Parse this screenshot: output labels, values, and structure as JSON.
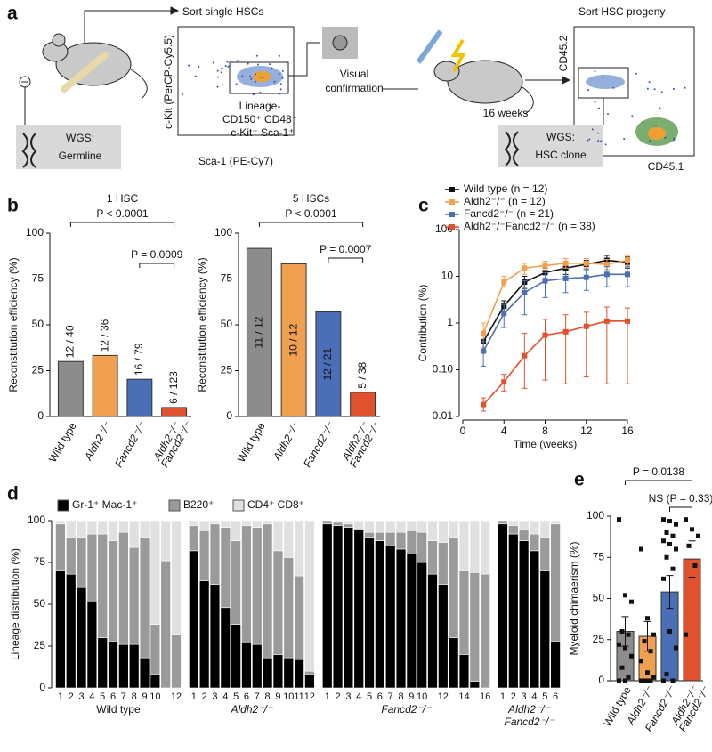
{
  "figure": {
    "panel_labels": [
      "a",
      "b",
      "c",
      "d",
      "e"
    ]
  },
  "diagram": {
    "sort_label": "Sort single HSCs",
    "flow1_ylabel": "c-Kit (PerCP-Cy5.5)",
    "flow1_xlabel": "Sca-1 (PE-Cy7)",
    "gate_text": [
      "Lineage-",
      "CD150⁺ CD48⁻",
      "c-Kit⁺ Sca-1⁺"
    ],
    "visual": [
      "Visual",
      "confirmation"
    ],
    "weeks": "16 weeks",
    "progeny_label": "Sort HSC progeny",
    "flow2_ylabel": "CD45.2",
    "flow2_xlabel": "CD45.1",
    "wgs1": [
      "WGS:",
      "Germline"
    ],
    "wgs2": [
      "WGS:",
      "HSC clone"
    ]
  },
  "chart_data": [
    {
      "type": "bar",
      "title": "1 HSC",
      "ylabel": "Reconstitution efficiency (%)",
      "categories": [
        "Wild type",
        "Aldh2⁻/⁻",
        "Fancd2⁻/⁻",
        [
          "Aldh2⁻/⁻",
          "Fancd2⁻/⁻"
        ]
      ],
      "values": [
        30,
        33.3,
        20.3,
        4.9
      ],
      "value_labels": [
        "12 / 40",
        "12 / 36",
        "16 / 79",
        "6 / 123"
      ],
      "colors": [
        "#8c8c8c",
        "#f0a050",
        "#4a6fb5",
        "#e0522e"
      ],
      "ylim": [
        0,
        100
      ],
      "yticks": [
        0,
        25,
        50,
        75,
        100
      ],
      "annotations": [
        "P < 0.0001",
        "P = 0.0009"
      ]
    },
    {
      "type": "bar",
      "title": "5 HSCs",
      "ylabel": "Reconstitution efficiency (%)",
      "categories": [
        "Wild type",
        "Aldh2⁻/⁻",
        "Fancd2⁻/⁻",
        [
          "Aldh2⁻/⁻",
          "Fancd2⁻/⁻"
        ]
      ],
      "values": [
        91.7,
        83.3,
        57.1,
        13.2
      ],
      "value_labels": [
        "11 / 12",
        "10 / 12",
        "12 / 21",
        "5 / 38"
      ],
      "colors": [
        "#8c8c8c",
        "#f0a050",
        "#4a6fb5",
        "#e0522e"
      ],
      "ylim": [
        0,
        100
      ],
      "yticks": [
        0,
        25,
        50,
        75,
        100
      ],
      "annotations": [
        "P < 0.0001",
        "P = 0.0007"
      ]
    },
    {
      "type": "line",
      "ylabel": "Contribution (%)",
      "xlabel": "Time (weeks)",
      "log": true,
      "x": [
        2,
        4,
        6,
        8,
        10,
        12,
        14,
        16
      ],
      "xlim": [
        0,
        16
      ],
      "xticks": [
        0,
        4,
        8,
        12,
        16
      ],
      "ylim": [
        0.01,
        100
      ],
      "yticks": [
        0.01,
        {
          "value": 0.1,
          "label": "0.10"
        },
        1,
        10,
        100
      ],
      "series": [
        {
          "name": "Wild type (n = 12)",
          "color": "#111111",
          "values": [
            0.4,
            2.3,
            7.5,
            12,
            15,
            18,
            22,
            20
          ],
          "lower": [
            0.25,
            1.8,
            5.5,
            9,
            11,
            14,
            17,
            15
          ],
          "upper": [
            0.6,
            3,
            10,
            15,
            19,
            22,
            28,
            26
          ]
        },
        {
          "name": "Aldh2⁻/⁻ (n = 12)",
          "color": "#f0a050",
          "values": [
            0.6,
            7.5,
            15,
            17,
            19,
            19,
            18,
            22
          ],
          "lower": [
            0.3,
            6,
            11,
            13,
            15,
            15,
            14,
            17
          ],
          "upper": [
            1,
            10,
            19,
            21,
            24,
            24,
            23,
            27
          ]
        },
        {
          "name": "Fancd2⁻/⁻ (n = 21)",
          "color": "#4a6fb5",
          "values": [
            0.25,
            1.6,
            4.5,
            8,
            9,
            9.5,
            11,
            11
          ],
          "lower": [
            0.12,
            0.8,
            1.5,
            3.5,
            4.5,
            5,
            6,
            6
          ],
          "upper": [
            0.4,
            2.5,
            8,
            12,
            13,
            14,
            16,
            16
          ]
        },
        {
          "name": "Aldh2⁻/⁻Fancd2⁻/⁻ (n = 38)",
          "color": "#e0522e",
          "values": [
            0.018,
            0.055,
            0.2,
            0.55,
            0.65,
            0.85,
            1.1,
            1.1
          ],
          "lower": [
            0.013,
            0.035,
            0.04,
            0.06,
            0.05,
            0.07,
            0.05,
            0.05
          ],
          "upper": [
            0.025,
            0.08,
            0.6,
            1.2,
            1.5,
            1.7,
            2.2,
            2.1
          ]
        }
      ]
    },
    {
      "type": "stacked_bar",
      "ylabel": "Lineage distribution (%)",
      "ylim": [
        0,
        100
      ],
      "yticks": [
        0,
        25,
        50,
        75,
        100
      ],
      "series": [
        {
          "name": "Gr-1⁺ Mac-1⁺",
          "color": "#000000"
        },
        {
          "name": "B220⁺",
          "color": "#9a9a9a"
        },
        {
          "name": "CD4⁺ CD8⁺",
          "color": "#e0e0e0"
        }
      ],
      "groups": [
        {
          "label": "Wild type",
          "categories": [
            "1",
            "2",
            "3",
            "4",
            "5",
            "6",
            "7",
            "8",
            "9",
            "10",
            null,
            "12"
          ],
          "series": [
            {
              "values": [
                70,
                68,
                60,
                52,
                30,
                28,
                26,
                26,
                18,
                8,
                0,
                0
              ]
            },
            {
              "values": [
                28,
                22,
                30,
                40,
                62,
                60,
                67,
                58,
                72,
                30,
                76,
                32
              ]
            },
            {
              "values": [
                2,
                10,
                10,
                8,
                8,
                12,
                7,
                16,
                10,
                62,
                24,
                68
              ]
            }
          ]
        },
        {
          "label": "Aldh2⁻/⁻",
          "categories": [
            "1",
            "2",
            "3",
            "4",
            "5",
            "6",
            "7",
            "8",
            "9",
            "10",
            "11",
            "12"
          ],
          "series": [
            {
              "values": [
                82,
                64,
                62,
                48,
                38,
                27,
                26,
                18,
                20,
                18,
                17,
                8
              ]
            },
            {
              "values": [
                15,
                30,
                36,
                48,
                50,
                70,
                70,
                80,
                62,
                60,
                50,
                2
              ]
            },
            {
              "values": [
                3,
                6,
                2,
                4,
                12,
                3,
                4,
                2,
                18,
                22,
                33,
                90
              ]
            }
          ]
        },
        {
          "label": "Fancd2⁻/⁻",
          "categories": [
            "1",
            "2",
            "3",
            "4",
            "5",
            "6",
            "7",
            "8",
            "9",
            "10",
            null,
            "12",
            null,
            "14",
            null,
            "16"
          ],
          "series": [
            {
              "values": [
                98,
                97,
                96,
                95,
                90,
                88,
                85,
                83,
                80,
                75,
                68,
                62,
                30,
                20,
                4,
                0
              ]
            },
            {
              "values": [
                2,
                2,
                2,
                0,
                3,
                5,
                8,
                10,
                14,
                18,
                20,
                25,
                60,
                50,
                65,
                68
              ]
            },
            {
              "values": [
                0,
                1,
                2,
                5,
                7,
                7,
                7,
                7,
                6,
                7,
                12,
                13,
                10,
                30,
                31,
                32
              ]
            }
          ]
        },
        {
          "label": [
            "Aldh2⁻/⁻",
            "Fancd2⁻/⁻"
          ],
          "categories": [
            "1",
            "2",
            "3",
            "4",
            "5",
            "6"
          ],
          "series": [
            {
              "values": [
                98,
                92,
                88,
                82,
                70,
                28
              ]
            },
            {
              "values": [
                2,
                5,
                7,
                10,
                20,
                70
              ]
            },
            {
              "values": [
                0,
                3,
                5,
                8,
                10,
                2
              ]
            }
          ]
        }
      ]
    },
    {
      "type": "bar_points",
      "ylabel": "Myeloid chimaerism (%)",
      "categories": [
        "Wild type",
        "Aldh2⁻/⁻",
        "Fancd2⁻/⁻",
        [
          "Aldh2⁻/⁻",
          "Fancd2⁻/⁻"
        ]
      ],
      "values": [
        30,
        27,
        54,
        74
      ],
      "errors": [
        9,
        9,
        10,
        11
      ],
      "colors": [
        "#8c8c8c",
        "#f0a050",
        "#4a6fb5",
        "#e0522e"
      ],
      "points": [
        [
          98,
          52,
          48,
          30,
          28,
          22,
          20,
          15,
          8,
          2,
          0,
          0
        ],
        [
          80,
          38,
          28,
          24,
          18,
          12,
          5,
          2,
          0,
          0,
          0,
          0
        ],
        [
          98,
          97,
          95,
          90,
          88,
          85,
          83,
          80,
          75,
          68,
          62,
          30,
          20,
          4,
          0,
          0
        ],
        [
          98,
          92,
          88,
          82,
          70,
          28
        ]
      ],
      "ylim": [
        0,
        100
      ],
      "yticks": [
        0,
        25,
        50,
        75,
        100
      ],
      "annotations": [
        "P = 0.0138",
        "NS (P = 0.33)"
      ]
    }
  ]
}
